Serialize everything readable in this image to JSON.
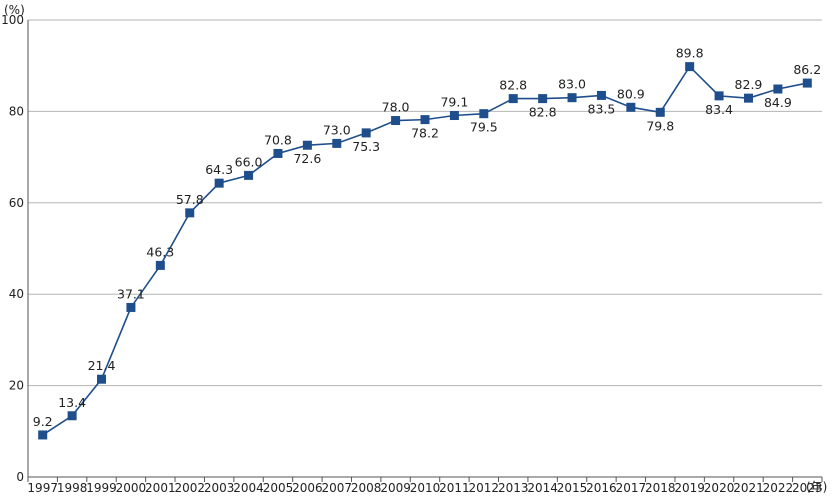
{
  "chart_data": {
    "type": "line",
    "title": "",
    "xlabel": "",
    "ylabel": "",
    "y_unit": "(%)",
    "x_unit": "(年)",
    "ylim": [
      0,
      100
    ],
    "y_ticks": [
      0,
      20,
      40,
      60,
      80,
      100
    ],
    "grid": true,
    "color": "#1f4e8c",
    "marker": "square",
    "x": [
      "1997",
      "1998",
      "1999",
      "2000",
      "2001",
      "2002",
      "2003",
      "2004",
      "2005",
      "2006",
      "2007",
      "2008",
      "2009",
      "2010",
      "2011",
      "2012",
      "2013",
      "2014",
      "2015",
      "2016",
      "2017",
      "2018",
      "2019",
      "2020",
      "2021",
      "2022",
      "2023"
    ],
    "values": [
      9.2,
      13.4,
      21.4,
      37.1,
      46.3,
      57.8,
      64.3,
      66.0,
      70.8,
      72.6,
      73.0,
      75.3,
      78.0,
      78.2,
      79.1,
      79.5,
      82.8,
      82.8,
      83.0,
      83.5,
      80.9,
      79.8,
      89.8,
      83.4,
      82.9,
      84.9,
      86.2
    ],
    "data_labels": [
      "9.2",
      "13.4",
      "21.4",
      "37.1",
      "46.3",
      "57.8",
      "64.3",
      "66.0",
      "70.8",
      "72.6",
      "73.0",
      "75.3",
      "78.0",
      "78.2",
      "79.1",
      "79.5",
      "82.8",
      "82.8",
      "83.0",
      "83.5",
      "80.9",
      "79.8",
      "89.8",
      "83.4",
      "82.9",
      "84.9",
      "86.2"
    ],
    "label_position": [
      "above",
      "above",
      "above",
      "above",
      "above",
      "above",
      "above",
      "above",
      "above",
      "below",
      "above",
      "below",
      "above",
      "below",
      "above",
      "below",
      "above",
      "below",
      "above",
      "below",
      "above",
      "below",
      "above",
      "below",
      "above",
      "below",
      "above"
    ]
  }
}
